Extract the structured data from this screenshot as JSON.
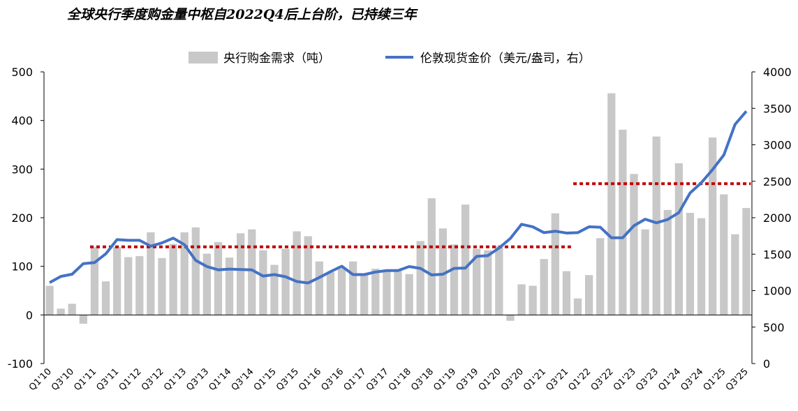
{
  "title": "全球央行季度购金量中枢自2022Q4后上台阶，已持续三年",
  "colors": {
    "bar": "#c8c8c8",
    "line": "#4472c4",
    "avg": "#c00000"
  },
  "chart_data": {
    "type": "bar+line",
    "title": "全球央行季度购金量中枢自2022Q4后上台阶，已持续三年",
    "legend_position": "top",
    "grid": false,
    "categories": [
      "Q1'10",
      "Q2'10",
      "Q3'10",
      "Q4'10",
      "Q1'11",
      "Q2'11",
      "Q3'11",
      "Q4'11",
      "Q1'12",
      "Q2'12",
      "Q3'12",
      "Q4'12",
      "Q1'13",
      "Q2'13",
      "Q3'13",
      "Q4'13",
      "Q1'14",
      "Q2'14",
      "Q3'14",
      "Q4'14",
      "Q1'15",
      "Q2'15",
      "Q3'15",
      "Q4'15",
      "Q1'16",
      "Q2'16",
      "Q3'16",
      "Q4'16",
      "Q1'17",
      "Q2'17",
      "Q3'17",
      "Q4'17",
      "Q1'18",
      "Q2'18",
      "Q3'18",
      "Q4'18",
      "Q1'19",
      "Q2'19",
      "Q3'19",
      "Q4'19",
      "Q1'20",
      "Q2'20",
      "Q3'20",
      "Q4'20",
      "Q1'21",
      "Q2'21",
      "Q3'21",
      "Q4'21",
      "Q1'22",
      "Q2'22",
      "Q3'22",
      "Q4'22",
      "Q1'23",
      "Q2'23",
      "Q3'23",
      "Q4'23",
      "Q1'24",
      "Q2'24",
      "Q3'24",
      "Q4'24",
      "Q1'25",
      "Q2'25",
      "Q3'25"
    ],
    "tick_labels": [
      "Q1'10",
      "Q3'10",
      "Q1'11",
      "Q3'11",
      "Q1'12",
      "Q3'12",
      "Q1'13",
      "Q3'13",
      "Q1'14",
      "Q3'14",
      "Q1'15",
      "Q3'15",
      "Q1'16",
      "Q3'16",
      "Q1'17",
      "Q3'17",
      "Q1'18",
      "Q3'18",
      "Q1'19",
      "Q3'19",
      "Q1'20",
      "Q3'20",
      "Q1'21",
      "Q3'21",
      "Q1'22",
      "Q3'22",
      "Q1'23",
      "Q3'23",
      "Q1'24",
      "Q3'24",
      "Q1'25",
      "Q3'25"
    ],
    "series": [
      {
        "name": "央行购金需求（吨）",
        "type": "bar",
        "axis": "left",
        "values": [
          60,
          13,
          23,
          -18,
          140,
          69,
          140,
          119,
          121,
          170,
          117,
          146,
          170,
          180,
          126,
          150,
          118,
          168,
          176,
          133,
          103,
          136,
          172,
          162,
          110,
          88,
          96,
          110,
          85,
          95,
          90,
          94,
          84,
          152,
          240,
          178,
          145,
          227,
          136,
          133,
          142,
          -12,
          63,
          60,
          115,
          209,
          90,
          34,
          82,
          158,
          456,
          381,
          290,
          176,
          367,
          216,
          312,
          210,
          199,
          365,
          248,
          166,
          220
        ]
      },
      {
        "name": "伦敦现货金价（美元/盎司，右）",
        "type": "line",
        "axis": "right",
        "values": [
          1110,
          1195,
          1225,
          1370,
          1385,
          1505,
          1700,
          1690,
          1690,
          1610,
          1655,
          1720,
          1630,
          1415,
          1330,
          1285,
          1295,
          1290,
          1285,
          1200,
          1220,
          1190,
          1125,
          1105,
          1180,
          1260,
          1335,
          1220,
          1220,
          1255,
          1275,
          1275,
          1330,
          1305,
          1215,
          1225,
          1305,
          1310,
          1470,
          1480,
          1585,
          1715,
          1910,
          1875,
          1795,
          1815,
          1790,
          1795,
          1875,
          1870,
          1725,
          1725,
          1890,
          1980,
          1930,
          1975,
          2070,
          2340,
          2480,
          2660,
          2860,
          3280,
          3460
        ]
      }
    ],
    "reference_lines": [
      {
        "from": "Q1'11",
        "to": "Q3'21",
        "value": 140,
        "axis": "left"
      },
      {
        "from": "Q4'21",
        "to": "Q3'25",
        "value": 270,
        "axis": "left"
      }
    ],
    "y_left": {
      "min": -100,
      "max": 500,
      "ticks": [
        -100,
        0,
        100,
        200,
        300,
        400,
        500
      ]
    },
    "y_right": {
      "min": 0,
      "max": 4000,
      "ticks": [
        0,
        500,
        1000,
        1500,
        2000,
        2500,
        3000,
        3500,
        4000
      ]
    }
  }
}
